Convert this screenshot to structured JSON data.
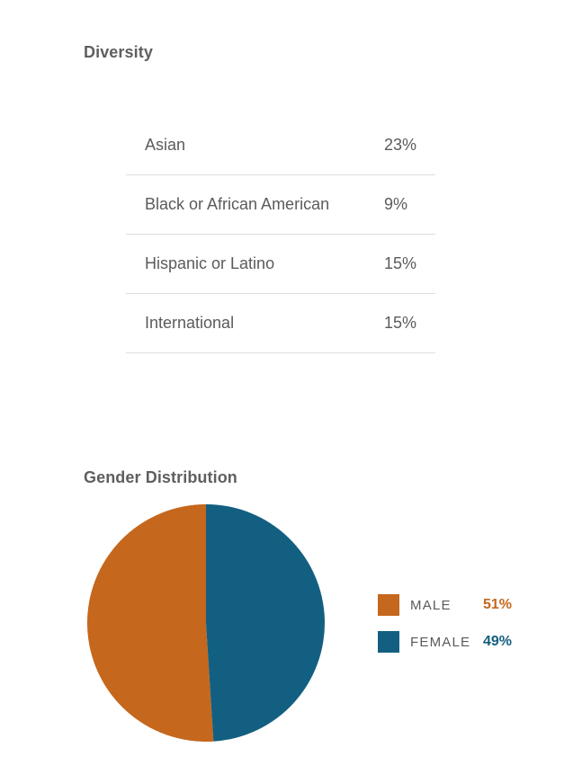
{
  "diversity": {
    "title": "Diversity",
    "rows": [
      {
        "label": "Asian",
        "value": "23%"
      },
      {
        "label": "Black or African American",
        "value": "9%"
      },
      {
        "label": "Hispanic or Latino",
        "value": "15%"
      },
      {
        "label": "International",
        "value": "15%"
      }
    ]
  },
  "gender": {
    "title": "Gender Distribution",
    "legend": [
      {
        "label": "MALE",
        "value": "51%"
      },
      {
        "label": "FEMALE",
        "value": "49%"
      }
    ]
  },
  "colors": {
    "male": "#c5671d",
    "female": "#135f81"
  },
  "chart_data": {
    "type": "pie",
    "title": "Gender Distribution",
    "categories": [
      "MALE",
      "FEMALE"
    ],
    "values": [
      51,
      49
    ],
    "colors": [
      "#c5671d",
      "#135f81"
    ],
    "legend_position": "right"
  }
}
